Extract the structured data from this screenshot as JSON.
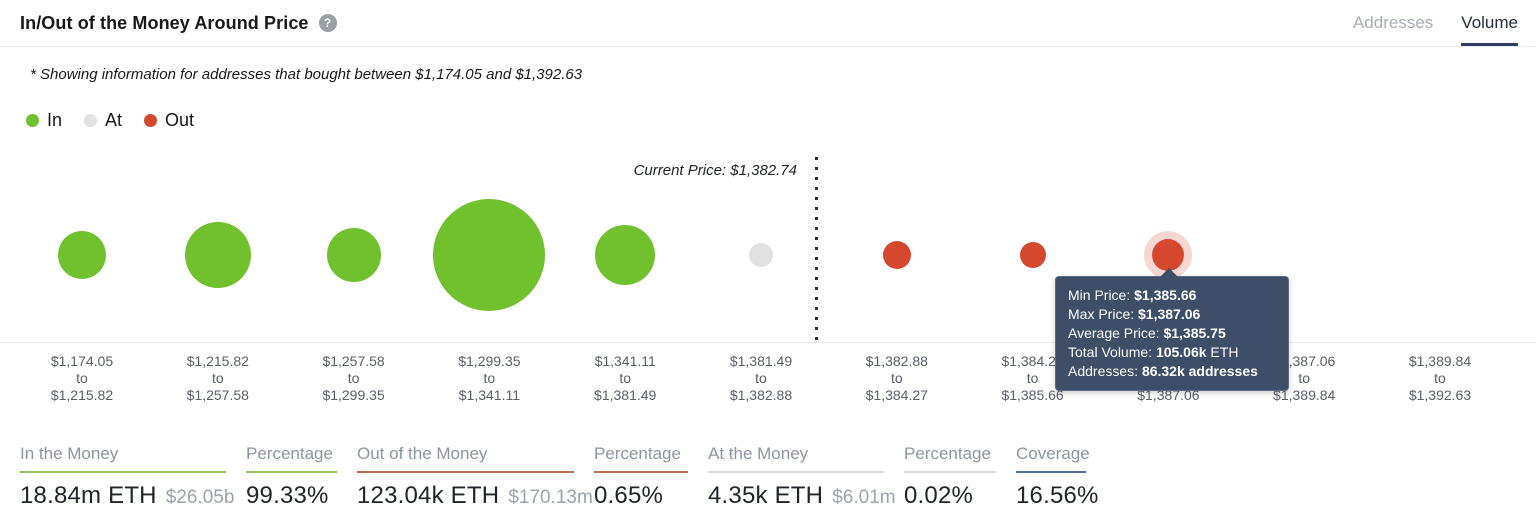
{
  "header": {
    "title": "In/Out of the Money Around Price",
    "help_glyph": "?",
    "tabs": [
      {
        "label": "Addresses",
        "active": false
      },
      {
        "label": "Volume",
        "active": true
      }
    ]
  },
  "note": "* Showing information for addresses that bought between $1,174.05 and $1,392.63",
  "legend": [
    {
      "label": "In",
      "color": "#71c12f"
    },
    {
      "label": "At",
      "color": "#e2e2e2"
    },
    {
      "label": "Out",
      "color": "#d5482e"
    }
  ],
  "chart_data": {
    "type": "bubble",
    "title": "In/Out of the Money Around Price",
    "current_price_label": "Current Price: $1,382.74",
    "current_price": "$1,382.74",
    "x_axis": "price buckets (USD)",
    "size_encodes": "volume",
    "legend_position": "top-left",
    "buckets": [
      {
        "from": "$1,174.05",
        "to_word": "to",
        "to": "$1,215.82",
        "status": "in",
        "radius": 24,
        "hovered": false
      },
      {
        "from": "$1,215.82",
        "to_word": "to",
        "to": "$1,257.58",
        "status": "in",
        "radius": 33,
        "hovered": false
      },
      {
        "from": "$1,257.58",
        "to_word": "to",
        "to": "$1,299.35",
        "status": "in",
        "radius": 27,
        "hovered": false
      },
      {
        "from": "$1,299.35",
        "to_word": "to",
        "to": "$1,341.11",
        "status": "in",
        "radius": 56,
        "hovered": false
      },
      {
        "from": "$1,341.11",
        "to_word": "to",
        "to": "$1,381.49",
        "status": "in",
        "radius": 30,
        "hovered": false
      },
      {
        "from": "$1,381.49",
        "to_word": "to",
        "to": "$1,382.88",
        "status": "at",
        "radius": 12,
        "hovered": false
      },
      {
        "from": "$1,382.88",
        "to_word": "to",
        "to": "$1,384.27",
        "status": "out",
        "radius": 14,
        "hovered": false
      },
      {
        "from": "$1,384.27",
        "to_word": "to",
        "to": "$1,385.66",
        "status": "out",
        "radius": 13,
        "hovered": false
      },
      {
        "from": "$1,385.66",
        "to_word": "to",
        "to": "$1,387.06",
        "status": "out",
        "radius": 16,
        "hovered": true
      },
      {
        "from": "$1,387.06",
        "to_word": "to",
        "to": "$1,389.84",
        "status": "out",
        "radius": 0,
        "hovered": false
      },
      {
        "from": "$1,389.84",
        "to_word": "to",
        "to": "$1,392.63",
        "status": "out",
        "radius": 0,
        "hovered": false
      }
    ],
    "hovered_bucket_tooltip": {
      "min_price": "$1,385.66",
      "max_price": "$1,387.06",
      "average_price": "$1,385.75",
      "total_volume": "105.06k ETH",
      "addresses": "86.32k addresses"
    }
  },
  "tooltip": {
    "rows": [
      {
        "label": "Min Price: ",
        "value": "$1,385.66"
      },
      {
        "label": "Max Price: ",
        "value": "$1,387.06"
      },
      {
        "label": "Average Price: ",
        "value": "$1,385.75"
      },
      {
        "label": "Total Volume: ",
        "value": "105.06k",
        "suffix": " ETH"
      },
      {
        "label": "Addresses: ",
        "value": "86.32k addresses"
      }
    ]
  },
  "stats": [
    {
      "label": "In the Money",
      "value": "18.84m ETH",
      "secondary": "$26.05b",
      "underline": "green"
    },
    {
      "label": "Percentage",
      "value": "99.33%",
      "secondary": "",
      "underline": "green"
    },
    {
      "label": "Out of the Money",
      "value": "123.04k ETH",
      "secondary": "$170.13m",
      "underline": "red"
    },
    {
      "label": "Percentage",
      "value": "0.65%",
      "secondary": "",
      "underline": "red"
    },
    {
      "label": "At the Money",
      "value": "4.35k ETH",
      "secondary": "$6.01m",
      "underline": "gray"
    },
    {
      "label": "Percentage",
      "value": "0.02%",
      "secondary": "",
      "underline": "gray"
    },
    {
      "label": "Coverage",
      "value": "16.56%",
      "secondary": "",
      "underline": "blue"
    }
  ],
  "colors": {
    "in": "#71c12f",
    "at": "#e2e2e2",
    "out": "#d5482e",
    "tooltip_bg": "#3e4d68",
    "tab_active": "#2f3e5c",
    "underline_green": "#94c25e",
    "underline_red": "#c2684d",
    "underline_gray": "#d8dbde",
    "underline_blue": "#4d7299"
  }
}
